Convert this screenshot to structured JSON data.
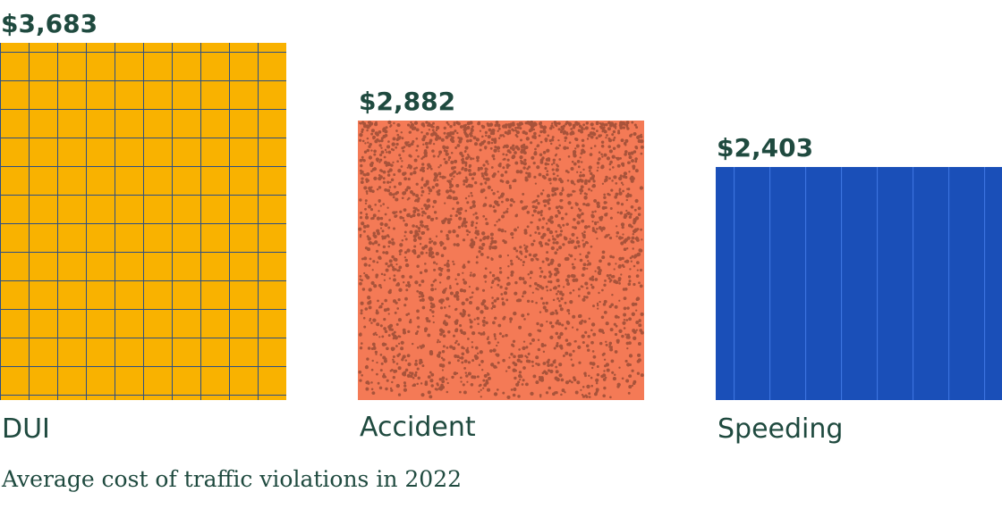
{
  "chart_data": {
    "type": "bar",
    "categories": [
      "DUI",
      "Accident",
      "Speeding"
    ],
    "values": [
      3683,
      2882,
      2403
    ],
    "value_labels": [
      "$3,683",
      "$2,882",
      "$2,403"
    ],
    "title": "",
    "caption": "Average cost of traffic violations in 2022",
    "xlabel": "",
    "ylabel": "",
    "ylim": [
      0,
      3683
    ],
    "colors": [
      "#f9b200",
      "#f47a56",
      "#1a4fb8"
    ],
    "pattern_colors": [
      "#2c4f86",
      "#a8533a",
      "#3c74e0"
    ],
    "text_color": "#1f4a3f"
  }
}
